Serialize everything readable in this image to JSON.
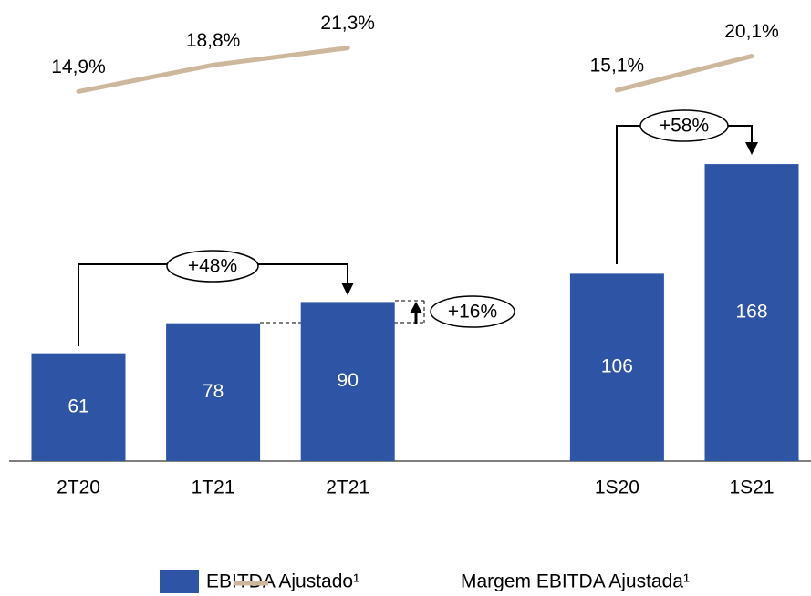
{
  "chart_data": {
    "type": "bar",
    "categories": [
      "2T20",
      "1T21",
      "2T21",
      null,
      "1S20",
      "1S21"
    ],
    "series": [
      {
        "name": "EBITDA Ajustado¹",
        "color": "#2E55A5",
        "values": [
          61,
          78,
          90,
          null,
          106,
          168
        ]
      },
      {
        "name": "Margem EBITDA Ajustada¹",
        "color": "#CDB89D",
        "axis": "y2",
        "values": [
          14.9,
          18.8,
          21.3,
          null,
          15.1,
          20.1
        ],
        "value_labels": [
          "14,9%",
          "18,8%",
          "21,3%",
          null,
          "15,1%",
          "20,1%"
        ]
      }
    ],
    "ylim": [
      0,
      200
    ],
    "y2lim": [
      10,
      25
    ],
    "annotations": [
      "+48%",
      "+16%",
      "+58%"
    ]
  }
}
